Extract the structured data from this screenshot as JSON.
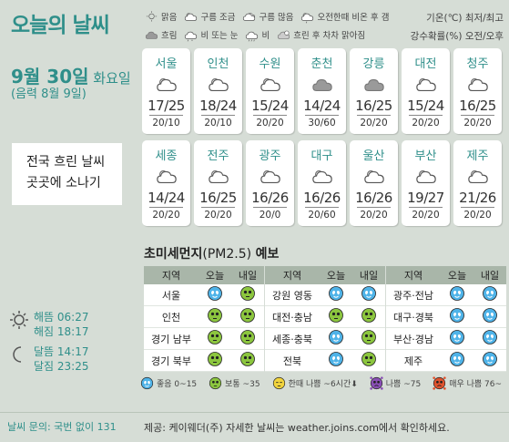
{
  "title": "오늘의 날씨",
  "date": {
    "month_day": "9월 30일",
    "weekday": "화요일",
    "lunar": "(음력 8월 9일)"
  },
  "message": [
    "전국 흐린 날씨",
    "곳곳에 소나기"
  ],
  "sun": {
    "icon": "sun-icon",
    "rise": "해뜸 06:27",
    "set": "해짐 18:17"
  },
  "moon": {
    "icon": "crescent-moon-icon",
    "rise": "달뜸 14:17",
    "set": "달짐 23:25"
  },
  "inquiry": "날씨 문의: 국번 없이 131",
  "weather_legend": [
    [
      {
        "icon": "sun-icon",
        "label": "맑음"
      },
      {
        "icon": "partly-cloudy-icon",
        "label": "구름 조금"
      },
      {
        "icon": "mostly-cloudy-icon",
        "label": "구름 많음"
      },
      {
        "icon": "sun-shower-icon",
        "label": "오전한때 비온 후 갬"
      }
    ],
    [
      {
        "icon": "overcast-icon",
        "label": "흐림"
      },
      {
        "icon": "rain-snow-icon",
        "label": "비 또는 눈"
      },
      {
        "icon": "rain-icon",
        "label": "비"
      },
      {
        "icon": "clearing-icon",
        "label": "흐린 후 차차 맑아짐"
      }
    ]
  ],
  "temp_legend": {
    "line1": "기온(℃) 최저/최고",
    "line2": "강수확률(%) 오전/오후"
  },
  "cities": [
    {
      "name": "서울",
      "icon": "partly-cloudy-icon",
      "temp": "17/25",
      "prob": "20/10"
    },
    {
      "name": "인천",
      "icon": "partly-cloudy-icon",
      "temp": "18/24",
      "prob": "20/10"
    },
    {
      "name": "수원",
      "icon": "partly-cloudy-icon",
      "temp": "15/24",
      "prob": "20/20"
    },
    {
      "name": "춘천",
      "icon": "overcast-icon",
      "temp": "14/24",
      "prob": "30/60"
    },
    {
      "name": "강릉",
      "icon": "overcast-icon",
      "temp": "16/25",
      "prob": "20/20"
    },
    {
      "name": "대전",
      "icon": "partly-cloudy-icon",
      "temp": "15/24",
      "prob": "20/20"
    },
    {
      "name": "청주",
      "icon": "partly-cloudy-icon",
      "temp": "16/25",
      "prob": "20/20"
    },
    {
      "name": "세종",
      "icon": "partly-cloudy-icon",
      "temp": "14/24",
      "prob": "20/20"
    },
    {
      "name": "전주",
      "icon": "partly-cloudy-icon",
      "temp": "16/25",
      "prob": "20/20"
    },
    {
      "name": "광주",
      "icon": "partly-cloudy-icon",
      "temp": "16/26",
      "prob": "20/0"
    },
    {
      "name": "대구",
      "icon": "partly-cloudy-icon",
      "temp": "16/26",
      "prob": "20/60"
    },
    {
      "name": "울산",
      "icon": "partly-cloudy-icon",
      "temp": "16/26",
      "prob": "20/20"
    },
    {
      "name": "부산",
      "icon": "partly-cloudy-icon",
      "temp": "19/27",
      "prob": "20/20"
    },
    {
      "name": "제주",
      "icon": "partly-cloudy-icon",
      "temp": "21/26",
      "prob": "20/20"
    }
  ],
  "dust": {
    "title": "초미세먼지",
    "pm": "(PM2.5)",
    "title_suffix": "예보",
    "headers": {
      "region": "지역",
      "am": "오늘",
      "pm": "내일"
    },
    "columns": [
      [
        {
          "region": "서울",
          "today": "good",
          "tomorrow": "normal"
        },
        {
          "region": "인천",
          "today": "normal",
          "tomorrow": "normal"
        },
        {
          "region": "경기 남부",
          "today": "normal",
          "tomorrow": "normal"
        },
        {
          "region": "경기 북부",
          "today": "normal",
          "tomorrow": "normal"
        }
      ],
      [
        {
          "region": "강원 영동",
          "today": "good",
          "tomorrow": "good"
        },
        {
          "region": "대전·충남",
          "today": "normal",
          "tomorrow": "normal"
        },
        {
          "region": "세종·충북",
          "today": "good",
          "tomorrow": "normal"
        },
        {
          "region": "전북",
          "today": "good",
          "tomorrow": "normal"
        }
      ],
      [
        {
          "region": "광주·전남",
          "today": "good",
          "tomorrow": "good"
        },
        {
          "region": "대구·경북",
          "today": "good",
          "tomorrow": "good"
        },
        {
          "region": "부산·경남",
          "today": "good",
          "tomorrow": "good"
        },
        {
          "region": "제주",
          "today": "good",
          "tomorrow": "good"
        }
      ]
    ],
    "legend": [
      {
        "level": "good",
        "label": "좋음 0~15"
      },
      {
        "level": "normal",
        "label": "보통 ~35"
      },
      {
        "level": "temporary-bad",
        "label": "한때 나쁨 ~6시간⬇"
      },
      {
        "level": "bad",
        "label": "나쁨 ~75"
      },
      {
        "level": "very-bad",
        "label": "매우 나쁨 76~"
      }
    ]
  },
  "footer": "제공: 케이웨더(주) 자세한 날씨는 weather.joins.com에서 확인하세요.",
  "colors": {
    "teal": "#2f8f8a",
    "good": "#4fb3e8",
    "normal": "#8cc63f",
    "temporary_bad": "#f2d43c",
    "bad": "#8a4fb5",
    "very_bad": "#e0522d",
    "panel": "#d6ddd6"
  }
}
